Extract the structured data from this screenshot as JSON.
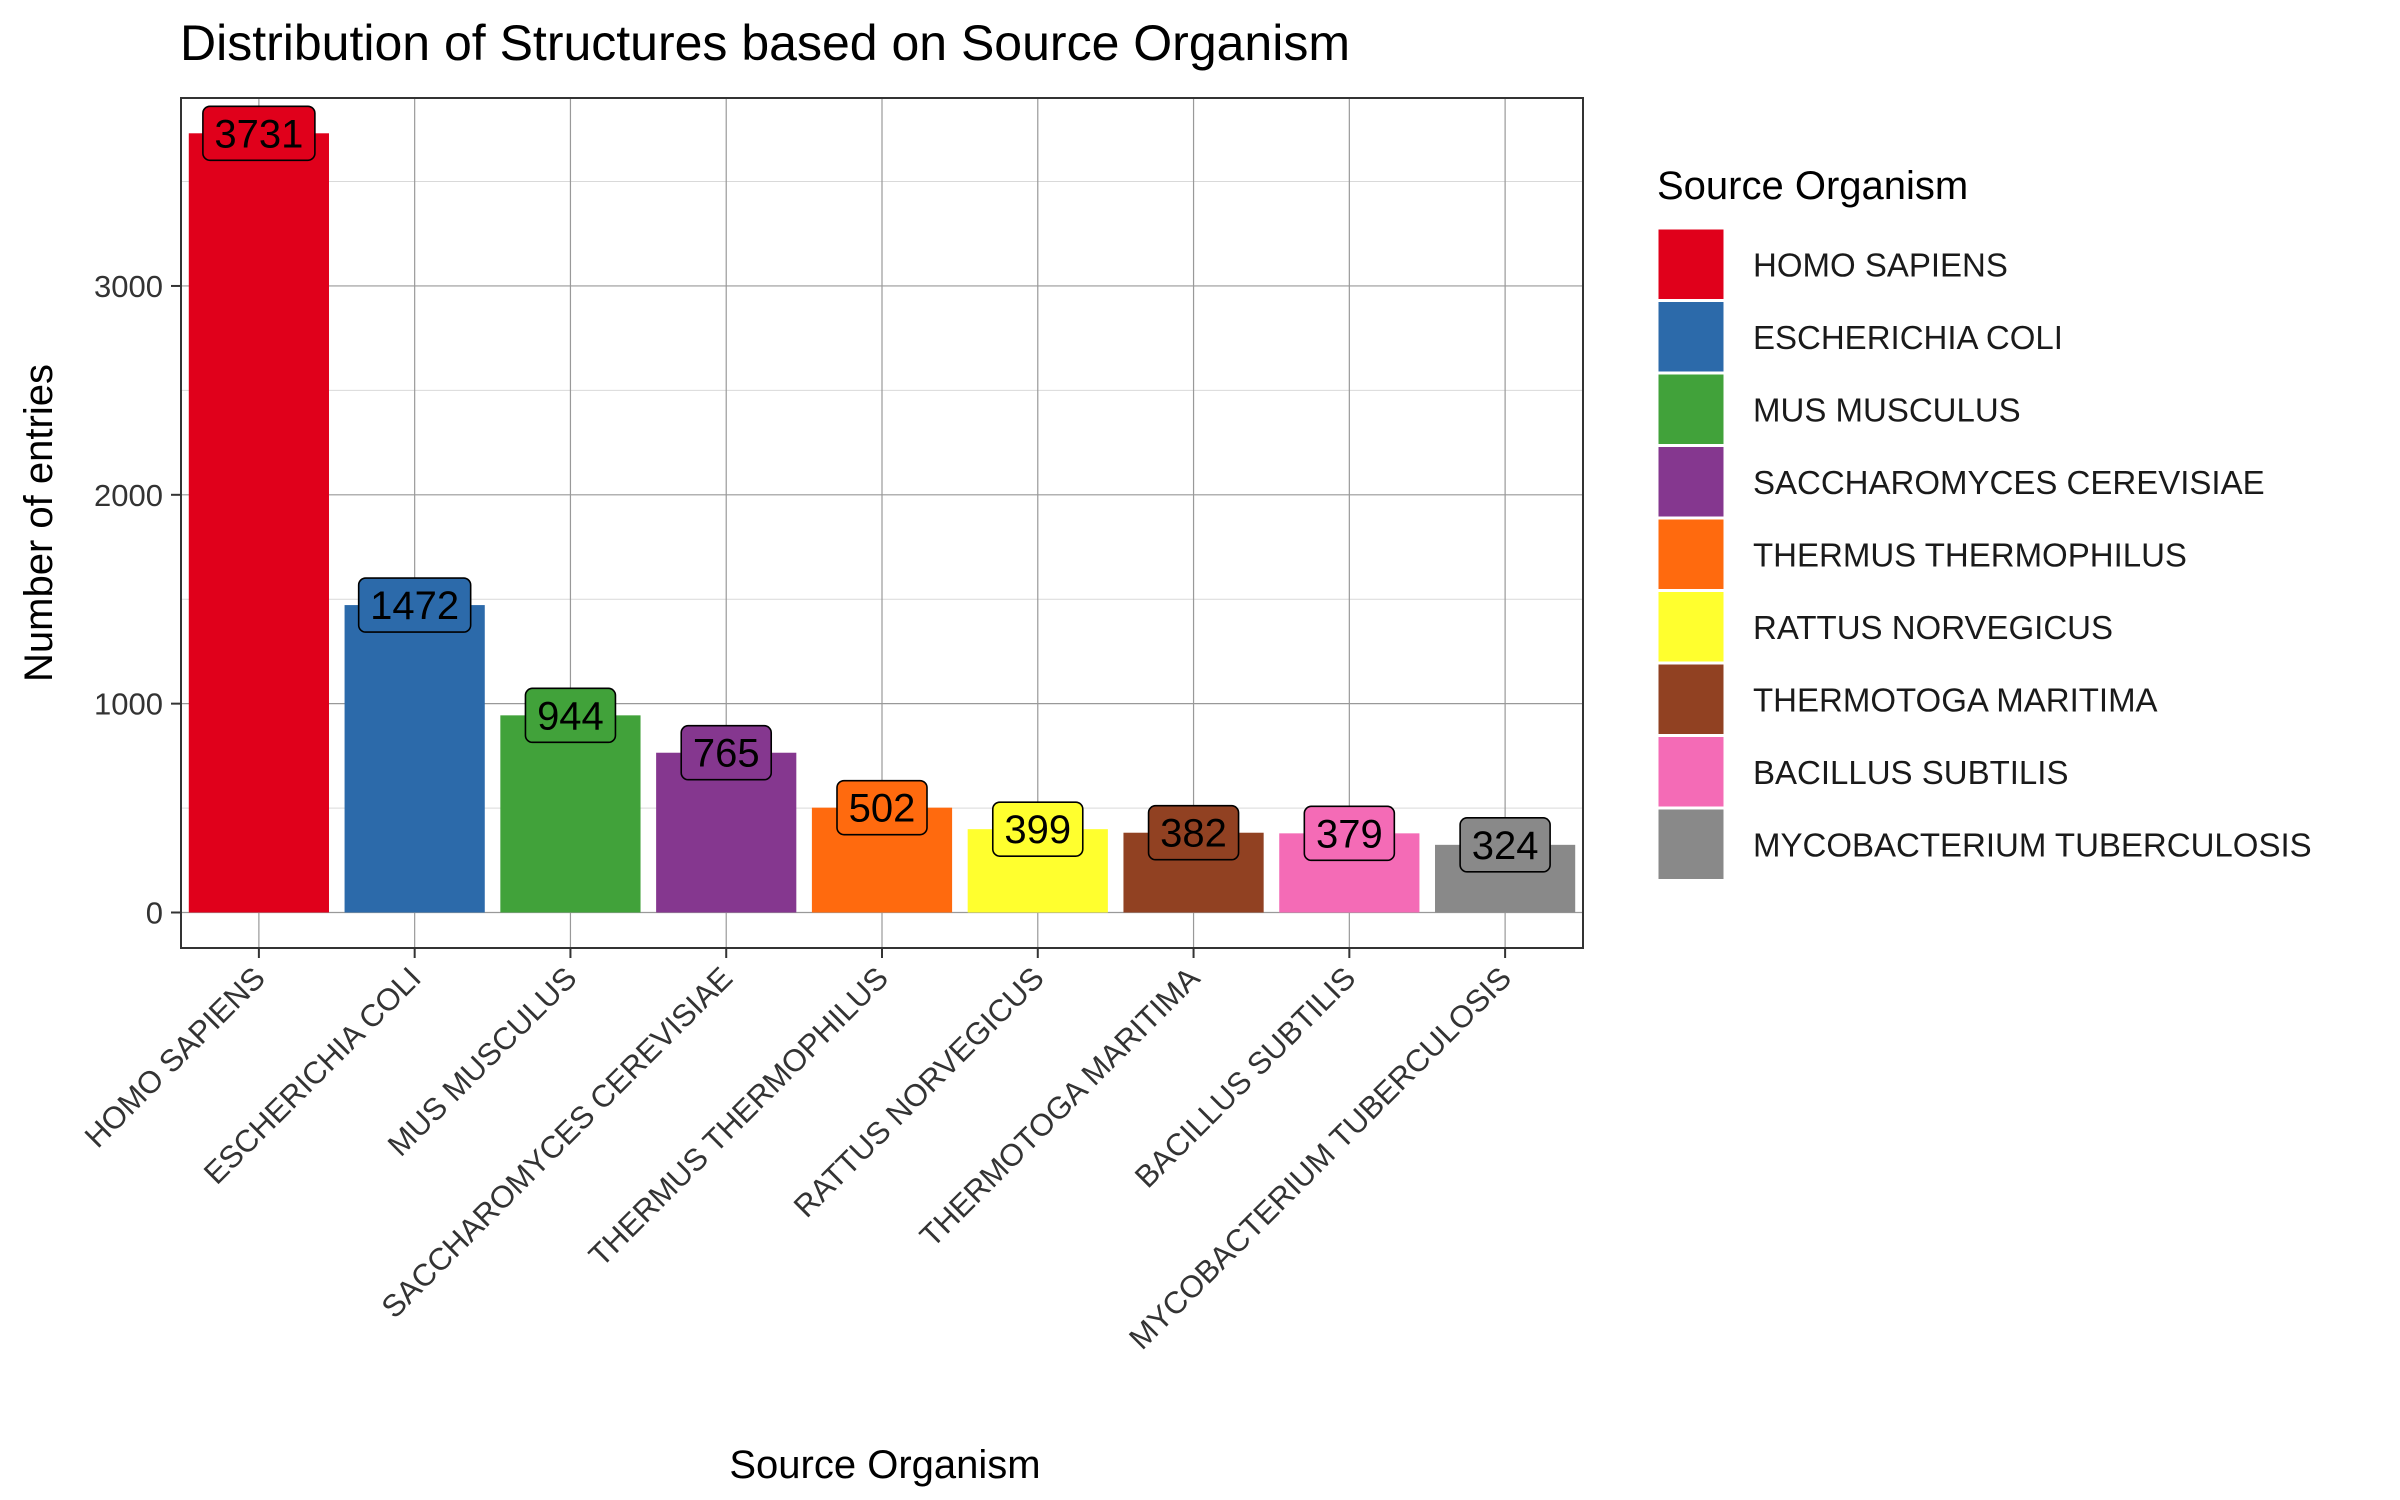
{
  "chart_data": {
    "type": "bar",
    "title": "Distribution of Structures based on Source Organism",
    "xlabel": "Source Organism",
    "ylabel": "Number of entries",
    "categories": [
      "HOMO SAPIENS",
      "ESCHERICHIA COLI",
      "MUS MUSCULUS",
      "SACCHAROMYCES CEREVISIAE",
      "THERMUS THERMOPHILUS",
      "RATTUS NORVEGICUS",
      "THERMOTOGA MARITIMA",
      "BACILLUS SUBTILIS",
      "MYCOBACTERIUM TUBERCULOSIS"
    ],
    "values": [
      3731,
      1472,
      944,
      765,
      502,
      399,
      382,
      379,
      324
    ],
    "colors": [
      "#E0001B",
      "#2C6AAA",
      "#41A23A",
      "#85378F",
      "#FF6A0E",
      "#FFFF2E",
      "#914122",
      "#F46BB6",
      "#898989"
    ],
    "yticks": [
      0,
      1000,
      2000,
      3000
    ],
    "ylim": [
      -170,
      3900
    ],
    "grid": true,
    "legend": {
      "title": "Source Organism",
      "placement": "right"
    }
  }
}
